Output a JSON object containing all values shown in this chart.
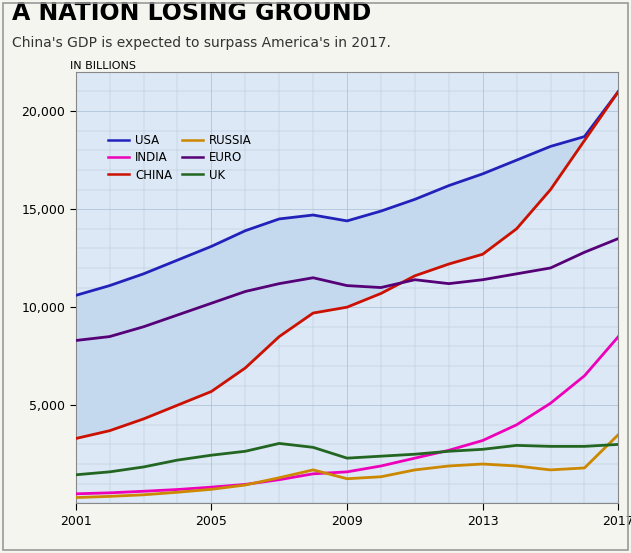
{
  "title": "A NATION LOSING GROUND",
  "subtitle": "China's GDP is expected to surpass America's in 2017.",
  "ylabel": "IN BILLIONS",
  "years": [
    2001,
    2002,
    2003,
    2004,
    2005,
    2006,
    2007,
    2008,
    2009,
    2010,
    2011,
    2012,
    2013,
    2014,
    2015,
    2016,
    2017
  ],
  "USA": [
    10600,
    11100,
    11700,
    12400,
    13100,
    13900,
    14500,
    14700,
    14400,
    14900,
    15500,
    16200,
    16800,
    17500,
    18200,
    18700,
    21000
  ],
  "CHINA": [
    3300,
    3700,
    4300,
    5000,
    5700,
    6900,
    8500,
    9700,
    10000,
    10700,
    11600,
    12200,
    12700,
    14000,
    16000,
    18500,
    21000
  ],
  "EURO": [
    8300,
    8500,
    9000,
    9600,
    10200,
    10800,
    11200,
    11500,
    11100,
    11000,
    11400,
    11200,
    11400,
    11700,
    12000,
    12800,
    13500
  ],
  "INDIA": [
    480,
    530,
    610,
    700,
    820,
    960,
    1200,
    1500,
    1600,
    1900,
    2300,
    2700,
    3200,
    4000,
    5100,
    6500,
    8500
  ],
  "RUSSIA": [
    290,
    350,
    430,
    560,
    710,
    930,
    1300,
    1700,
    1250,
    1350,
    1700,
    1900,
    2000,
    1900,
    1700,
    1800,
    3500
  ],
  "UK": [
    1450,
    1600,
    1850,
    2200,
    2450,
    2650,
    3050,
    2850,
    2300,
    2400,
    2500,
    2650,
    2750,
    2950,
    2900,
    2900,
    3000
  ],
  "colors": {
    "USA": "#2222bb",
    "CHINA": "#cc1100",
    "EURO": "#550077",
    "INDIA": "#ee00bb",
    "RUSSIA": "#cc8800",
    "UK": "#226622"
  },
  "fill_color": "#c5d9ee",
  "plot_bg": "#dce8f5",
  "grid_color": "#b0c4d8",
  "outer_bg": "#f5f5f0",
  "xlim": [
    2001,
    2017
  ],
  "ylim": [
    0,
    22000
  ],
  "yticks": [
    5000,
    10000,
    15000,
    20000
  ],
  "xticks": [
    2001,
    2005,
    2009,
    2013,
    2017
  ],
  "title_fontsize": 17,
  "subtitle_fontsize": 10,
  "tick_fontsize": 9
}
